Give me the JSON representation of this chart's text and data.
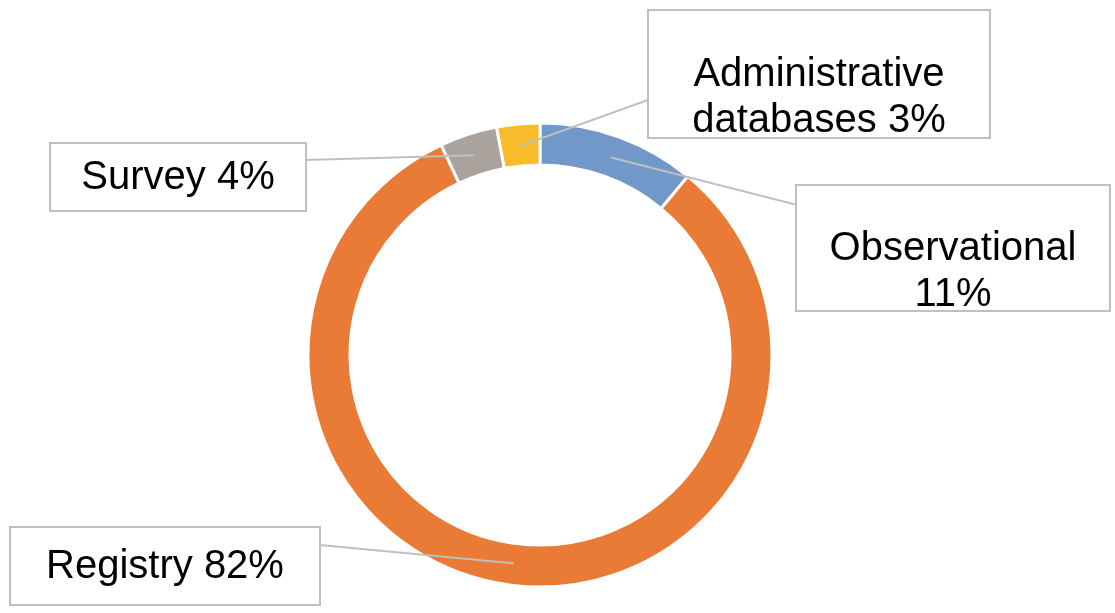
{
  "chart_data": {
    "type": "donut",
    "categories": [
      "Observational",
      "Registry",
      "Survey",
      "Administrative databases"
    ],
    "values": [
      11,
      82,
      4,
      3
    ],
    "value_labels": [
      "11%",
      "82%",
      "4%",
      "3%"
    ],
    "colors": [
      "#7297c9",
      "#e97b37",
      "#a9a29d",
      "#f7bb2c"
    ]
  }
}
